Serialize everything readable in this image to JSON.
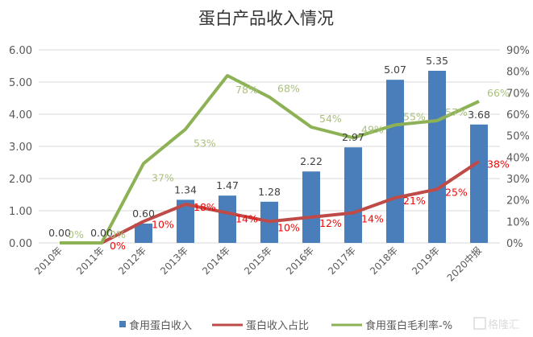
{
  "chart_data": {
    "type": "bar",
    "title": "蛋白产品收入情况",
    "categories": [
      "2010年",
      "2011年",
      "2012年",
      "2013年",
      "2014年",
      "2015年",
      "2016年",
      "2017年",
      "2018年",
      "2019年",
      "2020中报"
    ],
    "series": [
      {
        "name": "食用蛋白收入",
        "type": "bar",
        "axis": "left",
        "color": "#4a7ebb",
        "values": [
          0.0,
          0.0,
          0.6,
          1.34,
          1.47,
          1.28,
          2.22,
          2.97,
          5.07,
          5.35,
          3.68
        ],
        "labels": [
          "0.00",
          "0.00",
          "0.60",
          "1.34",
          "1.47",
          "1.28",
          "2.22",
          "2.97",
          "5.07",
          "5.35",
          "3.68"
        ]
      },
      {
        "name": "蛋白收入占比",
        "type": "line",
        "axis": "right",
        "color": "#be4b48",
        "values": [
          null,
          0,
          10,
          18,
          14,
          10,
          12,
          14,
          21,
          25,
          38
        ],
        "labels": [
          "",
          "0%",
          "10%",
          "18%",
          "14%",
          "10%",
          "12%",
          "14%",
          "21%",
          "25%",
          "38%"
        ],
        "label_color": "#ff0000"
      },
      {
        "name": "食用蛋白毛利率-%",
        "type": "line",
        "axis": "right",
        "color": "#8db255",
        "values": [
          0,
          0,
          37,
          53,
          78,
          68,
          54,
          49,
          55,
          57,
          66
        ],
        "labels": [
          "0%",
          "0%",
          "37%",
          "53%",
          "78%",
          "68%",
          "54%",
          "49%",
          "55%",
          "57%",
          "66%"
        ],
        "label_color": "#a9c27a"
      }
    ],
    "y_left": {
      "range": [
        0,
        6
      ],
      "ticks": [
        "0.00",
        "1.00",
        "2.00",
        "3.00",
        "4.00",
        "5.00",
        "6.00"
      ]
    },
    "y_right": {
      "range": [
        0,
        90
      ],
      "ticks": [
        "0%",
        "10%",
        "20%",
        "30%",
        "40%",
        "50%",
        "60%",
        "70%",
        "80%",
        "90%"
      ]
    },
    "grid": true,
    "legend": "bottom"
  },
  "watermark": "格隆汇"
}
